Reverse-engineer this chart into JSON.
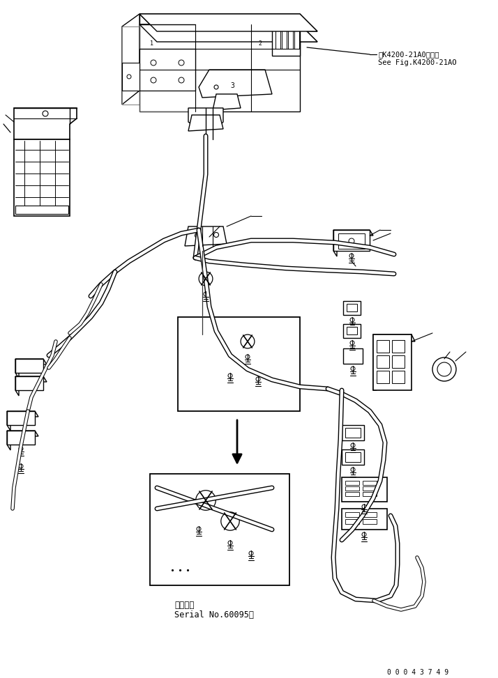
{
  "bg_color": "#ffffff",
  "line_color": "#000000",
  "annotation1_line1": "第K4200-21A0図参照",
  "annotation1_line2": "See Fig.K4200-21AO",
  "annotation2_line1": "適用号機",
  "annotation2_line2": "Serial No.60095～",
  "part_id": "0 0 0 4 3 7 4 9",
  "figsize": [
    7.14,
    9.73
  ],
  "dpi": 100
}
